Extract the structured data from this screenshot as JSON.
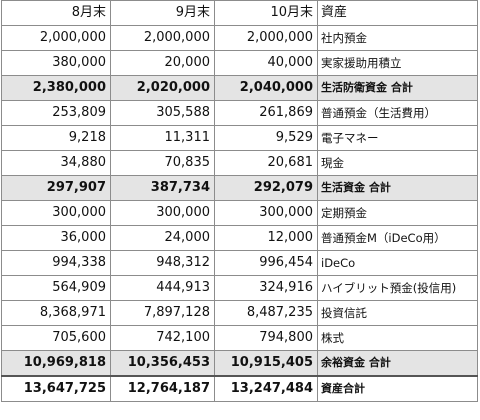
{
  "header": {
    "col1": "8月末",
    "col2": "9月末",
    "col3": "10月末",
    "col4": "資産"
  },
  "rows": [
    {
      "aug": "2,000,000",
      "sep": "2,000,000",
      "oct": "2,000,000",
      "label": "社内預金"
    },
    {
      "aug": "380,000",
      "sep": "20,000",
      "oct": "40,000",
      "label": "実家援助用積立"
    },
    {
      "aug": "2,380,000",
      "sep": "2,020,000",
      "oct": "2,040,000",
      "label": "生活防衛資金 合計"
    },
    {
      "aug": "253,809",
      "sep": "305,588",
      "oct": "261,869",
      "label": "普通預金（生活費用）"
    },
    {
      "aug": "9,218",
      "sep": "11,311",
      "oct": "9,529",
      "label": "電子マネー"
    },
    {
      "aug": "34,880",
      "sep": "70,835",
      "oct": "20,681",
      "label": "現金"
    },
    {
      "aug": "297,907",
      "sep": "387,734",
      "oct": "292,079",
      "label": "生活資金 合計"
    },
    {
      "aug": "300,000",
      "sep": "300,000",
      "oct": "300,000",
      "label": "定期預金"
    },
    {
      "aug": "36,000",
      "sep": "24,000",
      "oct": "12,000",
      "label": "普通預金M（iDeCo用）"
    },
    {
      "aug": "994,338",
      "sep": "948,312",
      "oct": "996,454",
      "label": "iDeCo"
    },
    {
      "aug": "564,909",
      "sep": "444,913",
      "oct": "324,916",
      "label": "ハイブリット預金(投信用)"
    },
    {
      "aug": "8,368,971",
      "sep": "7,897,128",
      "oct": "8,487,235",
      "label": "投資信託"
    },
    {
      "aug": "705,600",
      "sep": "742,100",
      "oct": "794,800",
      "label": "株式"
    },
    {
      "aug": "10,969,818",
      "sep": "10,356,453",
      "oct": "10,915,405",
      "label": "余裕資金 合計"
    },
    {
      "aug": "13,647,725",
      "sep": "12,764,187",
      "oct": "13,247,484",
      "label": "資産合計"
    }
  ]
}
